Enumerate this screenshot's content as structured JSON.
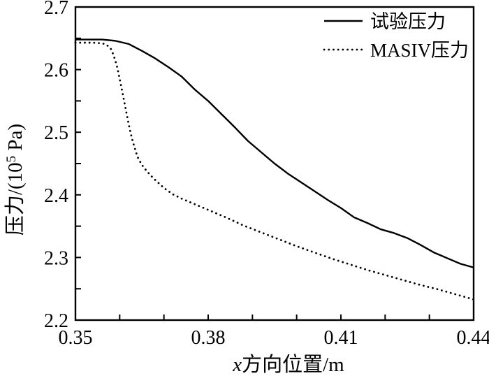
{
  "figure": {
    "colors": {
      "ink": "#000000",
      "background": "#ffffff"
    }
  },
  "chart_data": {
    "type": "line",
    "title": "",
    "xlabel_italic": "x",
    "xlabel_rest": "方向位置/m",
    "ylabel_prefix": "压力/(10",
    "ylabel_superscript": "5",
    "ylabel_suffix": " Pa)",
    "xlim": [
      0.35,
      0.44
    ],
    "ylim": [
      2.2,
      2.7
    ],
    "x_major_ticks": [
      0.35,
      0.38,
      0.41,
      0.44
    ],
    "x_major_tick_labels": [
      "0.35",
      "0.38",
      "0.41",
      "0.44"
    ],
    "x_minor_step": 0.01,
    "y_major_ticks": [
      2.2,
      2.3,
      2.4,
      2.5,
      2.6,
      2.7
    ],
    "y_major_tick_labels": [
      "2.2",
      "2.3",
      "2.4",
      "2.5",
      "2.6",
      "2.7"
    ],
    "y_minor_step": 0.05,
    "grid": false,
    "legend_position": "top-right-inside",
    "series": [
      {
        "name": "试验压力",
        "style": "solid",
        "points": [
          [
            0.35,
            2.648
          ],
          [
            0.353,
            2.648
          ],
          [
            0.356,
            2.648
          ],
          [
            0.359,
            2.646
          ],
          [
            0.362,
            2.641
          ],
          [
            0.365,
            2.63
          ],
          [
            0.368,
            2.618
          ],
          [
            0.371,
            2.604
          ],
          [
            0.374,
            2.589
          ],
          [
            0.377,
            2.568
          ],
          [
            0.38,
            2.55
          ],
          [
            0.383,
            2.529
          ],
          [
            0.386,
            2.508
          ],
          [
            0.389,
            2.486
          ],
          [
            0.392,
            2.468
          ],
          [
            0.395,
            2.45
          ],
          [
            0.398,
            2.434
          ],
          [
            0.401,
            2.42
          ],
          [
            0.404,
            2.406
          ],
          [
            0.407,
            2.392
          ],
          [
            0.41,
            2.379
          ],
          [
            0.413,
            2.364
          ],
          [
            0.416,
            2.355
          ],
          [
            0.419,
            2.345
          ],
          [
            0.422,
            2.339
          ],
          [
            0.425,
            2.331
          ],
          [
            0.428,
            2.32
          ],
          [
            0.431,
            2.308
          ],
          [
            0.434,
            2.299
          ],
          [
            0.437,
            2.29
          ],
          [
            0.44,
            2.284
          ]
        ]
      },
      {
        "name": "MASIV压力",
        "style": "dotted",
        "points": [
          [
            0.35,
            2.643
          ],
          [
            0.354,
            2.643
          ],
          [
            0.356,
            2.642
          ],
          [
            0.357,
            2.64
          ],
          [
            0.358,
            2.633
          ],
          [
            0.3585,
            2.625
          ],
          [
            0.359,
            2.615
          ],
          [
            0.3595,
            2.602
          ],
          [
            0.36,
            2.585
          ],
          [
            0.3605,
            2.568
          ],
          [
            0.361,
            2.55
          ],
          [
            0.3615,
            2.532
          ],
          [
            0.362,
            2.514
          ],
          [
            0.3625,
            2.498
          ],
          [
            0.363,
            2.484
          ],
          [
            0.364,
            2.461
          ],
          [
            0.365,
            2.448
          ],
          [
            0.366,
            2.439
          ],
          [
            0.367,
            2.431
          ],
          [
            0.368,
            2.424
          ],
          [
            0.37,
            2.411
          ],
          [
            0.372,
            2.401
          ],
          [
            0.374,
            2.394
          ],
          [
            0.376,
            2.388
          ],
          [
            0.378,
            2.382
          ],
          [
            0.38,
            2.376
          ],
          [
            0.384,
            2.364
          ],
          [
            0.388,
            2.351
          ],
          [
            0.392,
            2.34
          ],
          [
            0.396,
            2.329
          ],
          [
            0.4,
            2.318
          ],
          [
            0.404,
            2.308
          ],
          [
            0.408,
            2.298
          ],
          [
            0.412,
            2.289
          ],
          [
            0.416,
            2.28
          ],
          [
            0.42,
            2.272
          ],
          [
            0.424,
            2.264
          ],
          [
            0.428,
            2.256
          ],
          [
            0.432,
            2.249
          ],
          [
            0.436,
            2.241
          ],
          [
            0.44,
            2.233
          ]
        ]
      }
    ]
  }
}
